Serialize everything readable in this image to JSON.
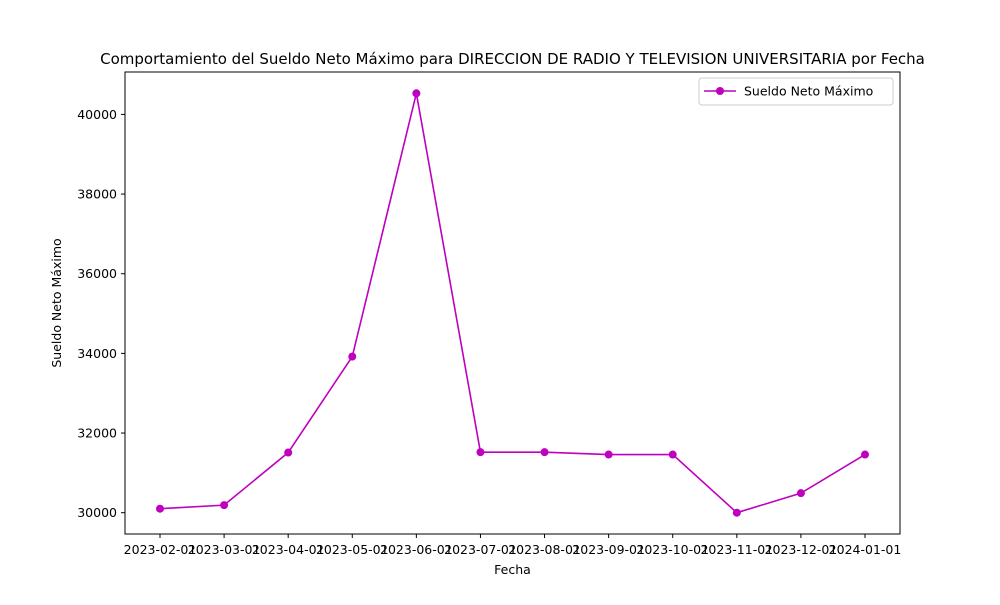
{
  "chart_data": {
    "type": "line",
    "title": "Comportamiento del Sueldo Neto Máximo para DIRECCION DE RADIO Y TELEVISION UNIVERSITARIA por Fecha",
    "xlabel": "Fecha",
    "ylabel": "Sueldo Neto Máximo",
    "categories": [
      "2023-02-01",
      "2023-03-01",
      "2023-04-01",
      "2023-05-01",
      "2023-06-01",
      "2023-07-01",
      "2023-08-01",
      "2023-09-01",
      "2023-10-01",
      "2023-11-01",
      "2023-12-01",
      "2024-01-01"
    ],
    "series": [
      {
        "name": "Sueldo Neto Máximo",
        "color": "#bf00bf",
        "marker": "circle",
        "values": [
          30100,
          30190,
          31510,
          33920,
          40530,
          31520,
          31520,
          31460,
          31460,
          30000,
          30490,
          31460
        ]
      }
    ],
    "ylim": [
      29465,
      41065
    ],
    "yticks": [
      30000,
      32000,
      34000,
      36000,
      38000,
      40000
    ],
    "yticklabels": [
      "30000",
      "32000",
      "34000",
      "36000",
      "38000",
      "40000"
    ],
    "grid": false,
    "legend_position": "top-right"
  }
}
